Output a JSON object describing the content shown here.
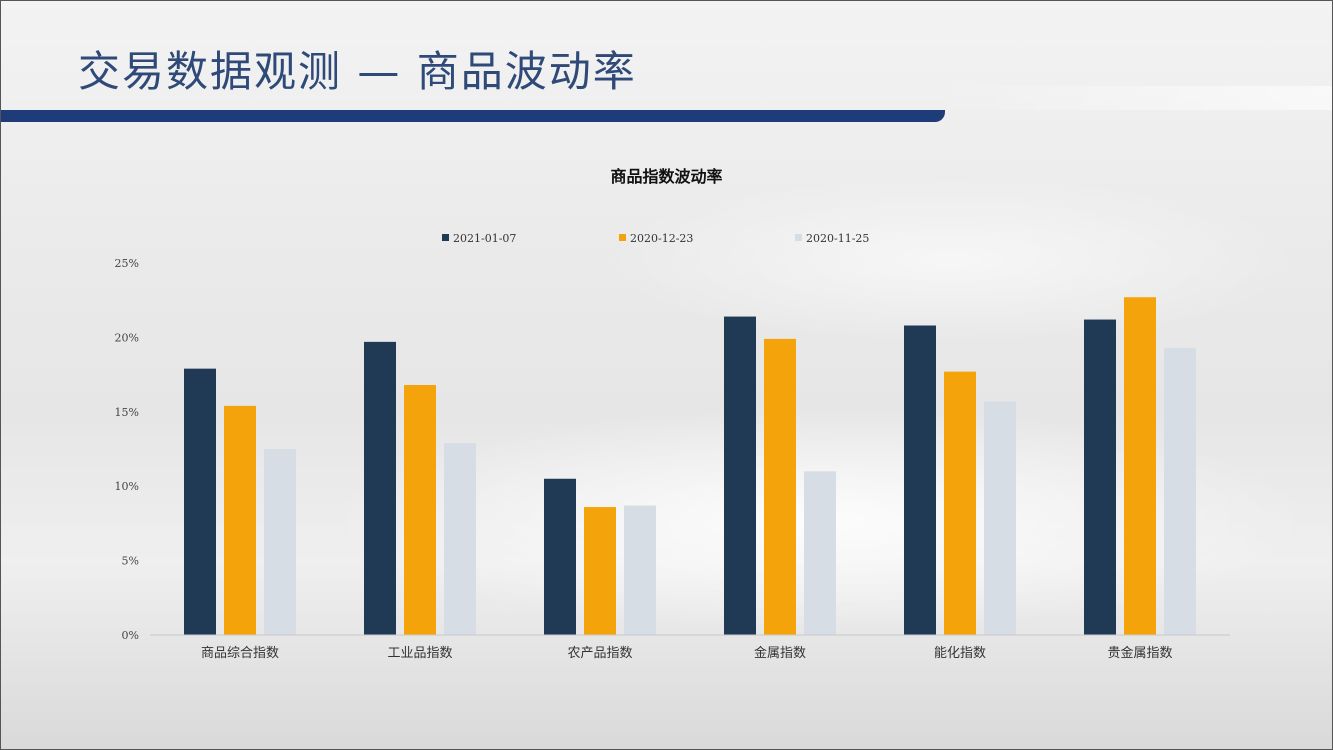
{
  "slide": {
    "title": "交易数据观测 — 商品波动率"
  },
  "colors": {
    "header_bar": "#1f3c7a",
    "title_text": "#2f4a78",
    "series_1": "#203a55",
    "series_2": "#f5a30a",
    "series_3": "#d7dde5"
  },
  "chart_data": {
    "type": "bar",
    "title": "商品指数波动率",
    "xlabel": "",
    "ylabel": "",
    "categories": [
      "商品综合指数",
      "工业品指数",
      "农产品指数",
      "金属指数",
      "能化指数",
      "贵金属指数"
    ],
    "series": [
      {
        "name": "2021-01-07",
        "color": "#203a55",
        "values": [
          17.9,
          19.7,
          10.5,
          21.4,
          20.8,
          21.2
        ]
      },
      {
        "name": "2020-12-23",
        "color": "#f5a30a",
        "values": [
          15.4,
          16.8,
          8.6,
          19.9,
          17.7,
          22.7
        ]
      },
      {
        "name": "2020-11-25",
        "color": "#d7dde5",
        "values": [
          12.5,
          12.9,
          8.7,
          11.0,
          15.7,
          19.3
        ]
      }
    ],
    "ylim": [
      0,
      25
    ],
    "yticks": [
      "0%",
      "5%",
      "10%",
      "15%",
      "20%",
      "25%"
    ],
    "grid": false,
    "legend_position": "top-center"
  }
}
